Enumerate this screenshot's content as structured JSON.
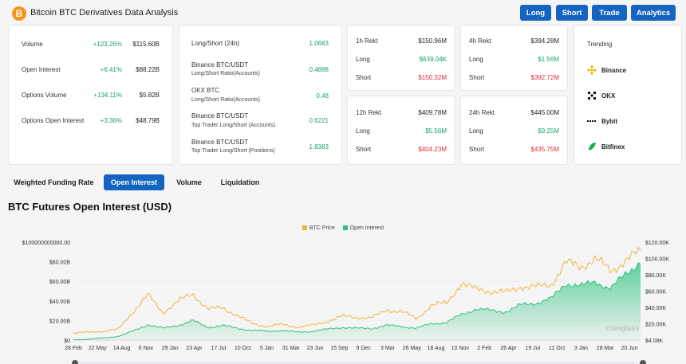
{
  "app": {
    "title": "Bitcoin BTC Derivatives Data Analysis",
    "logo": "B"
  },
  "nav": {
    "long": "Long",
    "short": "Short",
    "trade": "Trade",
    "analytics": "Analytics"
  },
  "overview": [
    {
      "label": "Volume",
      "change": "+123.26%",
      "value": "$115.60B"
    },
    {
      "label": "Open Interest",
      "change": "+6.41%",
      "value": "$88.22B"
    },
    {
      "label": "Options Volume",
      "change": "+134.11%",
      "value": "$5.82B"
    },
    {
      "label": "Options Open Interest",
      "change": "+3.36%",
      "value": "$48.79B"
    }
  ],
  "ratios": [
    {
      "label": "Long/Short (24h)",
      "sub": "",
      "value": "1.0683"
    },
    {
      "label": "Binance BTC/USDT",
      "sub": "Long/Short Ratio(Accounts)",
      "value": "0.4888"
    },
    {
      "label": "OKX BTC",
      "sub": "Long/Short Ratio(Accounts)",
      "value": "0.48"
    },
    {
      "label": "Binance BTC/USDT",
      "sub": "Top Trader Long/Short (Accounts)",
      "value": "0.6221"
    },
    {
      "label": "Binance BTC/USDT",
      "sub": "Top Trader Long/Short (Positions)",
      "value": "1.8383"
    }
  ],
  "rekt": [
    {
      "title": "1h Rekt",
      "total": "$150.96M",
      "long_label": "Long",
      "long": "$639.04K",
      "short_label": "Short",
      "short": "$150.32M"
    },
    {
      "title": "4h Rekt",
      "total": "$394.28M",
      "long_label": "Long",
      "long": "$1.56M",
      "short_label": "Short",
      "short": "$392.72M"
    },
    {
      "title": "12h Rekt",
      "total": "$409.78M",
      "long_label": "Long",
      "long": "$5.56M",
      "short_label": "Short",
      "short": "$404.23M"
    },
    {
      "title": "24h Rekt",
      "total": "$445.00M",
      "long_label": "Long",
      "long": "$9.25M",
      "short_label": "Short",
      "short": "$435.75M"
    }
  ],
  "trending": {
    "title": "Trending",
    "items": [
      {
        "name": "Binance",
        "icon": "binance-icon"
      },
      {
        "name": "OKX",
        "icon": "okx-icon"
      },
      {
        "name": "Bybit",
        "icon": "bybit-icon"
      },
      {
        "name": "Bitfinex",
        "icon": "bitfinex-icon"
      }
    ]
  },
  "tabs": [
    "Weighted Funding Rate",
    "Open Interest",
    "Volume",
    "Liquidation"
  ],
  "active_tab": "Open Interest",
  "section_title": "BTC Futures Open Interest (USD)",
  "watermark": "coinglass",
  "colors": {
    "accent": "#1565c0",
    "price": "#f0b43c",
    "oi": "#2ec27e",
    "up": "#1aa364",
    "down": "#e02b3b"
  },
  "chart_data": {
    "type": "area",
    "legend": [
      "BTC Price",
      "Open Interest"
    ],
    "left_axis_ticks": [
      "$0",
      "$20.00B",
      "$40.00B",
      "$60.00B",
      "$80.00B",
      "$100000000000.00"
    ],
    "right_axis_ticks": [
      "$4.08K",
      "$20.00K",
      "$40.00K",
      "$60.00K",
      "$80.00K",
      "$100.00K",
      "$120.00K"
    ],
    "x_tick_labels": [
      "28 Feb",
      "22 May",
      "14 Aug",
      "6 Nov",
      "29 Jan",
      "23 Apr",
      "17 Jul",
      "10 Oct",
      "5 Jan",
      "31 Mar",
      "23 Jun",
      "15 Sep",
      "9 Dec",
      "3 Mar",
      "26 May",
      "18 Aug",
      "10 Nov",
      "2 Feb",
      "26 Apr",
      "19 Jul",
      "11 Oct",
      "3 Jan",
      "28 Mar",
      "20 Jun"
    ],
    "series": [
      {
        "name": "BTC Price",
        "axis": "right",
        "values": [
          8.5,
          9.5,
          11,
          13,
          35,
          55,
          34,
          47,
          57,
          38,
          40,
          30,
          20,
          17,
          19,
          16,
          18,
          23,
          29,
          28,
          27,
          37,
          35,
          26,
          43,
          45,
          70,
          62,
          60,
          58,
          66,
          65,
          68,
          95,
          90,
          100,
          84,
          98,
          108
        ]
      },
      {
        "name": "Open Interest",
        "axis": "left",
        "values": [
          0.5,
          1,
          2,
          4,
          9,
          16,
          12,
          15,
          20,
          13,
          15,
          12,
          10,
          9,
          10,
          8,
          9,
          11,
          13,
          12,
          12,
          15,
          14,
          12,
          17,
          18,
          26,
          32,
          30,
          29,
          36,
          38,
          42,
          58,
          55,
          60,
          52,
          68,
          80
        ]
      }
    ]
  }
}
